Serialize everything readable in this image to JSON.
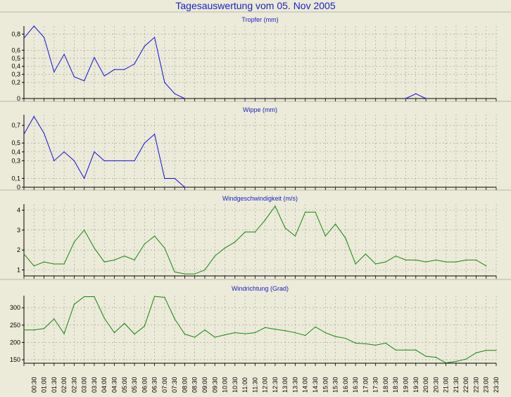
{
  "window": {
    "title": "Tagesauswertung vom 05. Nov 2005"
  },
  "colors": {
    "background": "#ecead8",
    "title": "#1a22c8",
    "rain_line": "#1010e0",
    "wind_line": "#108810",
    "grid": "#9a9a9a"
  },
  "chart_data": [
    {
      "type": "line",
      "title": "Tropfer (mm)",
      "ylim": [
        0,
        0.9
      ],
      "yticks": [
        0,
        0.2,
        0.3,
        0.4,
        0.5,
        0.6,
        0.8
      ],
      "ytick_labels": [
        "0",
        "0,2",
        "0,3",
        "0,4",
        "0,5",
        "0,6",
        "0,8"
      ],
      "grid": true,
      "x": [
        0,
        1,
        2,
        3,
        4,
        5,
        6,
        7,
        8,
        9,
        10,
        11,
        12,
        13,
        14,
        15,
        16,
        38,
        39,
        40
      ],
      "values": [
        0.75,
        0.9,
        0.76,
        0.33,
        0.55,
        0.27,
        0.22,
        0.51,
        0.28,
        0.36,
        0.36,
        0.43,
        0.65,
        0.76,
        0.2,
        0.06,
        0,
        0,
        0.06,
        0
      ]
    },
    {
      "type": "line",
      "title": "Wippe (mm)",
      "ylim": [
        0,
        0.82
      ],
      "yticks": [
        0,
        0.1,
        0.3,
        0.4,
        0.5,
        0.7
      ],
      "ytick_labels": [
        "0",
        "0,1",
        "0,3",
        "0,4",
        "0,5",
        "0,7"
      ],
      "grid": true,
      "x": [
        0,
        1,
        2,
        3,
        4,
        5,
        6,
        7,
        8,
        9,
        10,
        11,
        12,
        13,
        14,
        15,
        16
      ],
      "values": [
        0.6,
        0.8,
        0.61,
        0.3,
        0.4,
        0.3,
        0.1,
        0.4,
        0.3,
        0.3,
        0.3,
        0.3,
        0.5,
        0.6,
        0.1,
        0.1,
        0
      ]
    },
    {
      "type": "line",
      "title": "Windgeschwindigkeit (m/s)",
      "ylim": [
        0.7,
        4.3
      ],
      "yticks": [
        1,
        2,
        3,
        4
      ],
      "ytick_labels": [
        "1",
        "2",
        "3",
        "4"
      ],
      "grid": true,
      "x": [
        0,
        1,
        2,
        3,
        4,
        5,
        6,
        7,
        8,
        9,
        10,
        11,
        12,
        13,
        14,
        15,
        16,
        17,
        18,
        19,
        20,
        21,
        22,
        23,
        24,
        25,
        26,
        27,
        28,
        29,
        30,
        31,
        32,
        33,
        34,
        35,
        36,
        37,
        38,
        39,
        40,
        41,
        42,
        43,
        44,
        45,
        46
      ],
      "values": [
        1.8,
        1.2,
        1.4,
        1.3,
        1.3,
        2.4,
        3,
        2.1,
        1.4,
        1.5,
        1.7,
        1.5,
        2.3,
        2.7,
        2.1,
        0.9,
        0.8,
        0.8,
        1,
        1.7,
        2.1,
        2.4,
        2.9,
        2.9,
        3.5,
        4.2,
        3.1,
        2.7,
        3.9,
        3.9,
        2.7,
        3.3,
        2.6,
        1.3,
        1.8,
        1.3,
        1.4,
        1.7,
        1.5,
        1.5,
        1.4,
        1.5,
        1.4,
        1.4,
        1.5,
        1.5,
        1.2
      ]
    },
    {
      "type": "line",
      "title": "Windrichtung (Grad)",
      "ylim": [
        140,
        335
      ],
      "yticks": [
        150,
        200,
        250,
        300
      ],
      "ytick_labels": [
        "150",
        "200",
        "250",
        "300"
      ],
      "grid": true,
      "x": [
        0,
        1,
        2,
        3,
        4,
        5,
        6,
        7,
        8,
        9,
        10,
        11,
        12,
        13,
        14,
        15,
        16,
        17,
        18,
        19,
        20,
        21,
        22,
        23,
        24,
        25,
        26,
        27,
        28,
        29,
        30,
        31,
        32,
        33,
        34,
        35,
        36,
        37,
        38,
        39,
        40,
        41,
        42,
        43,
        44,
        45,
        46,
        47
      ],
      "values": [
        236,
        236,
        240,
        268,
        225,
        310,
        332,
        332,
        270,
        228,
        255,
        224,
        247,
        333,
        330,
        268,
        224,
        215,
        236,
        215,
        222,
        228,
        225,
        228,
        243,
        238,
        234,
        228,
        220,
        245,
        228,
        217,
        212,
        198,
        196,
        192,
        198,
        178,
        178,
        178,
        160,
        157,
        141,
        145,
        152,
        170,
        177,
        177
      ]
    }
  ],
  "x_axis": {
    "labels": [
      "00:30",
      "01:00",
      "01:30",
      "02:00",
      "02:30",
      "03:00",
      "03:30",
      "04:00",
      "04:30",
      "05:00",
      "05:30",
      "06:00",
      "06:30",
      "07:00",
      "07:30",
      "08:00",
      "08:30",
      "09:00",
      "09:30",
      "10:00",
      "10:30",
      "11:00",
      "11:30",
      "12:00",
      "12:30",
      "13:00",
      "13:30",
      "14:00",
      "14:30",
      "15:00",
      "15:30",
      "16:00",
      "16:30",
      "17:00",
      "17:30",
      "18:00",
      "18:30",
      "19:00",
      "19:30",
      "20:00",
      "20:30",
      "21:00",
      "21:30",
      "22:00",
      "22:30",
      "23:00",
      "23:30"
    ]
  }
}
